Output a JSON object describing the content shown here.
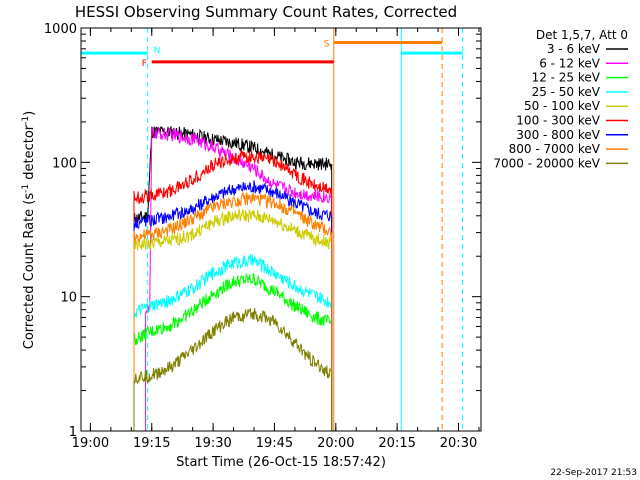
{
  "chart_data": {
    "type": "line",
    "title": "HESSI Observing Summary Count Rates, Corrected",
    "xlabel": "Start Time (26-Oct-15 18:57:42)",
    "ylabel": "Corrected Count Rate (s⁻¹ detector⁻¹)",
    "ylabel_parts": {
      "main": "Corrected Count Rate (s",
      "sup1": "-1",
      "mid": " detector",
      "sup2": "-1",
      "end": ")"
    },
    "y_scale": "log",
    "ylim": [
      1,
      1000
    ],
    "xlim": [
      "18:57:42",
      "20:35:30"
    ],
    "ytick_labels": [
      "1",
      "10",
      "100",
      "1000"
    ],
    "xtick_labels": [
      "19:00",
      "19:15",
      "19:30",
      "19:45",
      "20:00",
      "20:15",
      "20:30"
    ],
    "timestamp": "22-Sep-2017 21:53",
    "legend": {
      "placement": "right",
      "header": "Det 1,5,7, Att 0",
      "entries": [
        {
          "label": "3 - 6 keV",
          "color": "#000000"
        },
        {
          "label": "6 - 12 keV",
          "color": "#ff00ff"
        },
        {
          "label": "12 - 25 keV",
          "color": "#00ff00"
        },
        {
          "label": "25 - 50 keV",
          "color": "#00ffff"
        },
        {
          "label": "50 - 100 keV",
          "color": "#cccc00"
        },
        {
          "label": "100 - 300 keV",
          "color": "#ff0000"
        },
        {
          "label": "300 - 800 keV",
          "color": "#0000ff"
        },
        {
          "label": "800 - 7000 keV",
          "color": "#ff7f00"
        },
        {
          "label": "7000 - 20000 keV",
          "color": "#7f7f00"
        }
      ]
    },
    "flag_bars": [
      {
        "label": "",
        "color": "#00ffff",
        "start": "18:57:42",
        "end": "19:14:00",
        "value": 650
      },
      {
        "label": "N",
        "color": "#00ffff",
        "start": "19:14:00",
        "end": "19:14:00",
        "value": 700
      },
      {
        "label": "F",
        "color": "#ff0000",
        "start": "19:15:00",
        "end": "19:59:30",
        "value": 560
      },
      {
        "label": "S",
        "color": "#ff7f00",
        "start": "19:59:30",
        "end": "20:26:00",
        "value": 780
      },
      {
        "label": "",
        "color": "#00ffff",
        "start": "20:16:00",
        "end": "20:31:00",
        "value": 650
      }
    ],
    "vertical_markers": [
      {
        "time": "19:14:00",
        "color": "#00ffff",
        "style": "dashed"
      },
      {
        "time": "19:59:30",
        "color": "#ff7f00",
        "style": "solid"
      },
      {
        "time": "20:16:00",
        "color": "#00ffff",
        "style": "solid"
      },
      {
        "time": "20:26:00",
        "color": "#ff7f00",
        "style": "dashed"
      },
      {
        "time": "20:31:00",
        "color": "#00ffff",
        "style": "dashed"
      }
    ],
    "series": [
      {
        "name": "3 - 6 keV",
        "color": "#000000",
        "x": [
          "19:10:40",
          "19:14:00",
          "19:15:00",
          "19:20",
          "19:25",
          "19:30",
          "19:35",
          "19:40",
          "19:45",
          "19:50",
          "19:55",
          "19:59:00"
        ],
        "y": [
          38,
          40,
          170,
          168,
          160,
          148,
          140,
          128,
          112,
          100,
          98,
          97
        ]
      },
      {
        "name": "6 - 12 keV",
        "color": "#ff00ff",
        "x": [
          "19:13:30",
          "19:14:30",
          "19:15:00",
          "19:20",
          "19:25",
          "19:28",
          "19:30",
          "19:35",
          "19:40",
          "19:43",
          "19:45",
          "19:50",
          "19:55",
          "19:59:00"
        ],
        "y": [
          8,
          8,
          165,
          160,
          150,
          138,
          130,
          108,
          90,
          75,
          68,
          60,
          56,
          55
        ]
      },
      {
        "name": "12 - 25 keV",
        "color": "#00ff00",
        "x": [
          "19:10:40",
          "19:15",
          "19:20",
          "19:25",
          "19:30",
          "19:35",
          "19:40",
          "19:45",
          "19:50",
          "19:55",
          "19:59:00"
        ],
        "y": [
          4.8,
          5.5,
          6.2,
          7.8,
          10.5,
          13,
          13.5,
          11,
          8.5,
          7,
          6.3
        ]
      },
      {
        "name": "25 - 50 keV",
        "color": "#00ffff",
        "x": [
          "19:10:40",
          "19:15",
          "19:20",
          "19:25",
          "19:30",
          "19:35",
          "19:40",
          "19:45",
          "19:50",
          "19:55",
          "19:59:00"
        ],
        "y": [
          7.5,
          8.5,
          9.5,
          11.5,
          15,
          18,
          18.5,
          15,
          12,
          10,
          9
        ]
      },
      {
        "name": "50 - 100 keV",
        "color": "#cccc00",
        "x": [
          "19:10:40",
          "19:15",
          "19:20",
          "19:25",
          "19:30",
          "19:35",
          "19:40",
          "19:45",
          "19:50",
          "19:55",
          "19:59:00"
        ],
        "y": [
          24,
          25,
          26,
          29,
          36,
          40,
          40,
          37,
          31,
          27,
          25
        ]
      },
      {
        "name": "100 - 300 keV",
        "color": "#ff0000",
        "x": [
          "19:10:40",
          "19:15",
          "19:20",
          "19:25",
          "19:30",
          "19:35",
          "19:40",
          "19:45",
          "19:50",
          "19:55",
          "19:59:00"
        ],
        "y": [
          55,
          57,
          62,
          75,
          95,
          108,
          110,
          102,
          82,
          66,
          62
        ]
      },
      {
        "name": "300 - 800 keV",
        "color": "#0000ff",
        "x": [
          "19:10:40",
          "19:15",
          "19:20",
          "19:25",
          "19:30",
          "19:35",
          "19:40",
          "19:45",
          "19:50",
          "19:55",
          "19:59:00"
        ],
        "y": [
          36,
          37,
          40,
          45,
          55,
          63,
          66,
          60,
          50,
          42,
          40
        ]
      },
      {
        "name": "800 - 7000 keV",
        "color": "#ff7f00",
        "x": [
          "19:10:40",
          "19:15",
          "19:20",
          "19:25",
          "19:30",
          "19:35",
          "19:40",
          "19:45",
          "19:50",
          "19:55",
          "19:59:00"
        ],
        "y": [
          28,
          29,
          32,
          38,
          46,
          52,
          54,
          50,
          42,
          34,
          30
        ]
      },
      {
        "name": "7000 - 20000 keV",
        "color": "#7f7f00",
        "x": [
          "19:10:40",
          "19:15",
          "19:20",
          "19:25",
          "19:30",
          "19:35",
          "19:40",
          "19:45",
          "19:50",
          "19:55",
          "19:59:00"
        ],
        "y": [
          2.5,
          2.6,
          3,
          4,
          5.5,
          7,
          7.5,
          6.5,
          4.5,
          3.2,
          2.6
        ]
      }
    ]
  }
}
